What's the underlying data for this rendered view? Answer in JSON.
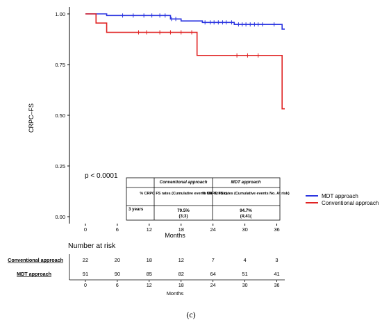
{
  "chart_data": {
    "type": "line",
    "subtype": "kaplan-meier",
    "ylabel": "CRPC–FS",
    "xlabel": "Months",
    "xlim": [
      -3,
      37.5
    ],
    "ylim": [
      0,
      1.0
    ],
    "xticks": [
      0,
      6,
      12,
      18,
      24,
      30,
      36
    ],
    "yticks": [
      "0.00",
      "0.25",
      "0.50",
      "0.75",
      "1.00"
    ],
    "pvalue_text": "p < 0.0001",
    "legend_position": "right",
    "series": [
      {
        "name": "MDT approach",
        "color": "#2b35e0",
        "steps": [
          [
            0,
            1.0
          ],
          [
            4,
            0.992
          ],
          [
            16,
            0.975
          ],
          [
            18,
            0.965
          ],
          [
            22,
            0.958
          ],
          [
            28,
            0.948
          ],
          [
            37,
            0.925
          ],
          [
            37.5,
            0.925
          ]
        ],
        "censor_times": [
          7,
          9,
          11,
          12.5,
          14,
          15,
          16.2,
          17,
          22.5,
          23.5,
          24.2,
          25,
          25.8,
          26.5,
          27.5,
          28.8,
          29.5,
          30.2,
          31,
          31.8,
          32.5,
          33.3,
          35.5
        ]
      },
      {
        "name": "Conventional approach",
        "color": "#e02323",
        "steps": [
          [
            0,
            1.0
          ],
          [
            2,
            0.955
          ],
          [
            4,
            0.909
          ],
          [
            21,
            0.795
          ],
          [
            37,
            0.532
          ],
          [
            37.5,
            0.532
          ]
        ],
        "censor_times": [
          10,
          11.5,
          14,
          16,
          18,
          20,
          28.5,
          30.5,
          32.5
        ]
      }
    ],
    "embedded_table": {
      "col1_header": "Conventional approach",
      "col2_header": "MDT approach",
      "subheader": "% CRPC FS rates (Cumulative events No. At risk)",
      "row_label": "3 years",
      "col1_value": "79.5%",
      "col1_detail": "(3;3)",
      "col2_value": "94.7%",
      "col2_detail": "(4;41("
    },
    "risk_table": {
      "title": "Number at risk",
      "rows": [
        {
          "label": "Conventional approach",
          "values": [
            22,
            20,
            18,
            12,
            7,
            4,
            3
          ]
        },
        {
          "label": "MDT approach",
          "values": [
            91,
            90,
            85,
            82,
            64,
            51,
            41
          ]
        }
      ],
      "xlabel": "Months"
    }
  },
  "figure_caption": "(c)"
}
